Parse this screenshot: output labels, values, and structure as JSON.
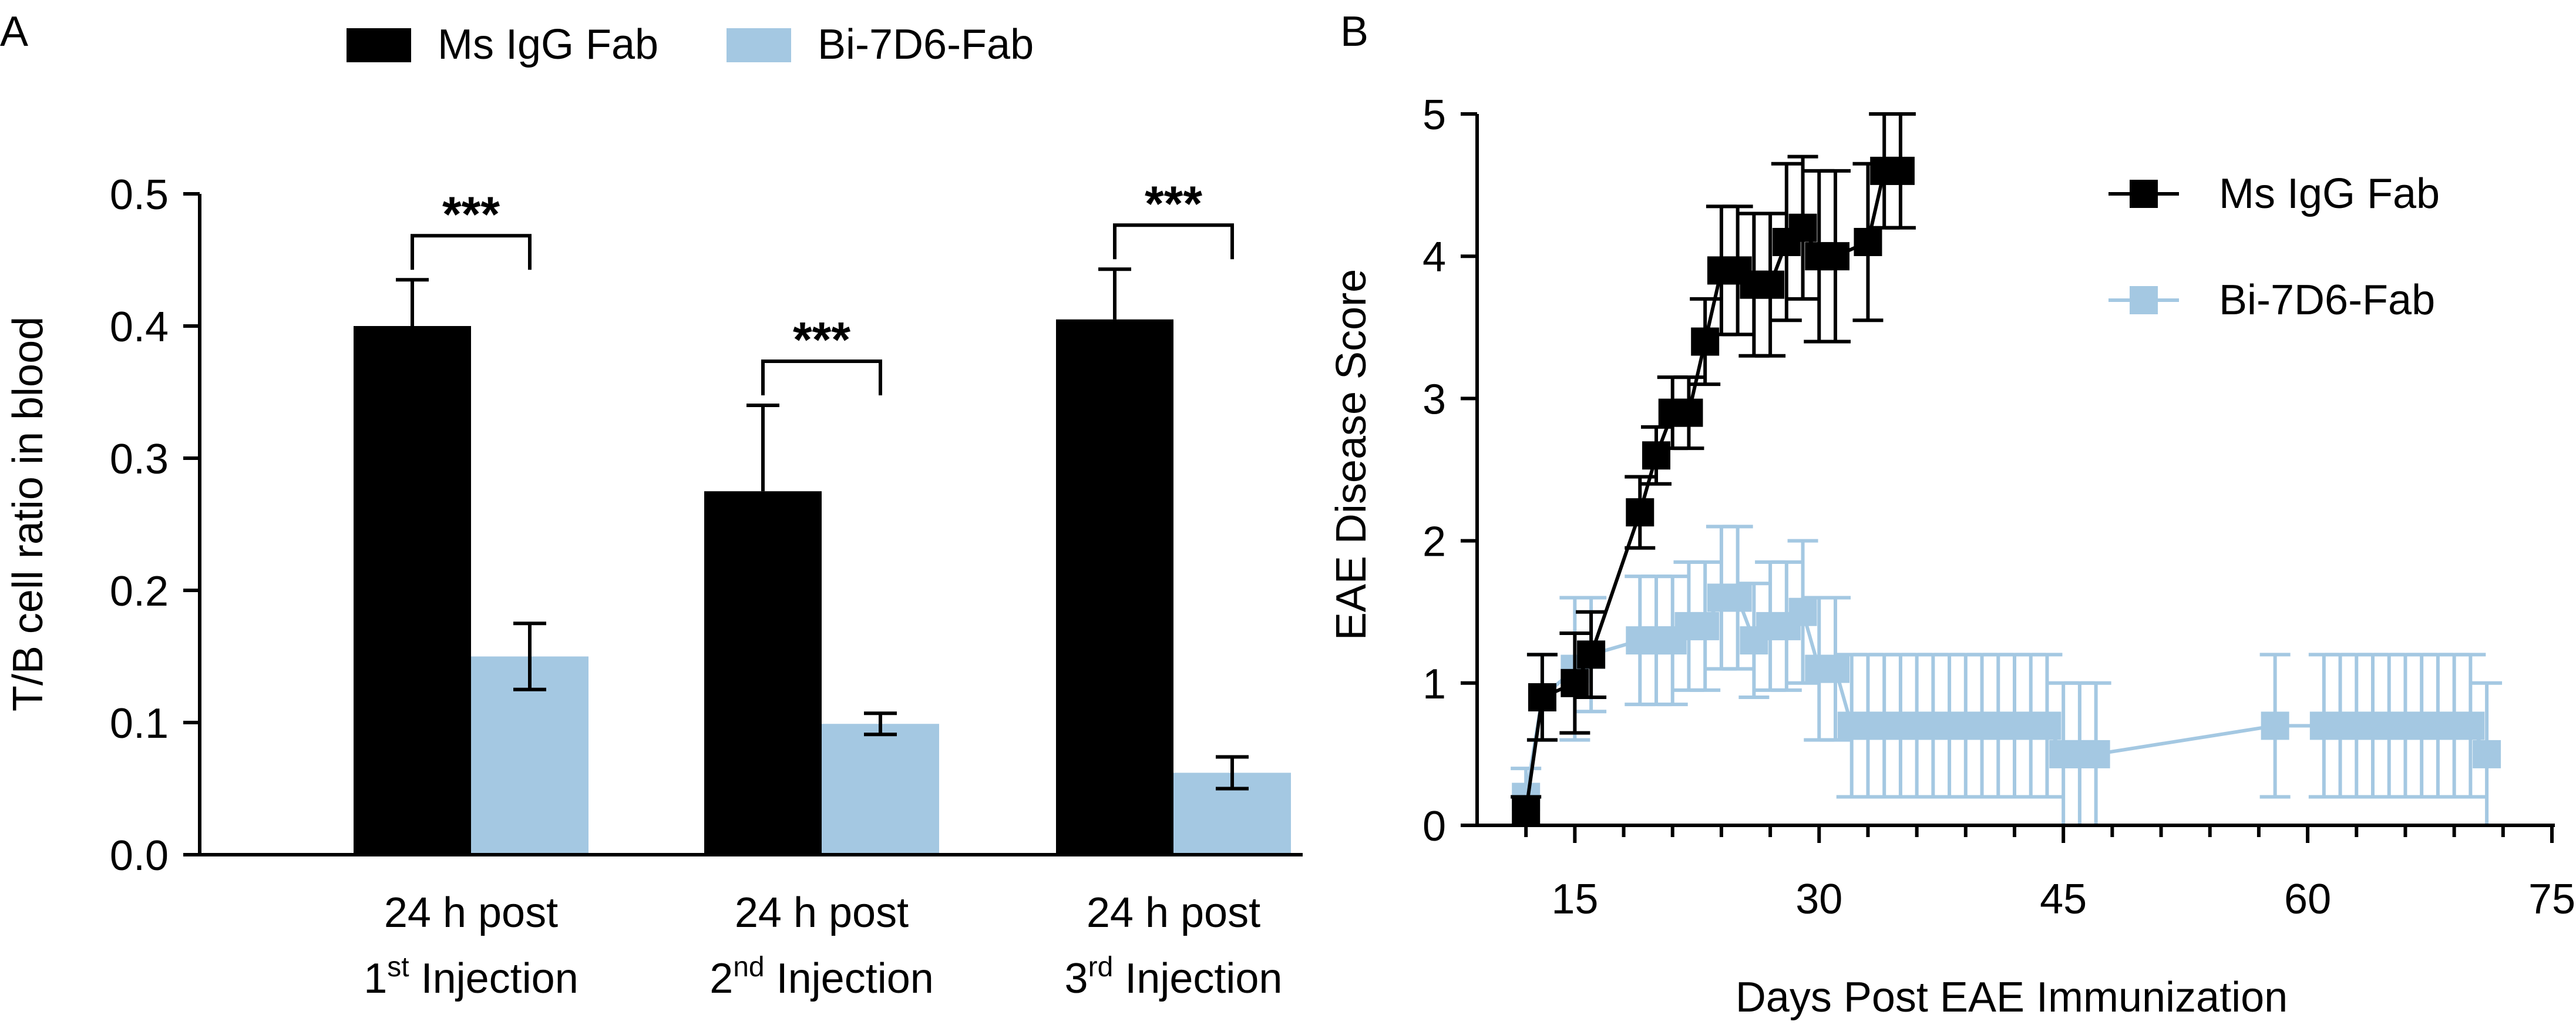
{
  "colors": {
    "ms": "#000000",
    "bi": "#a4c8e2"
  },
  "chart_data": [
    {
      "panel": "A",
      "type": "bar",
      "title": "",
      "ylabel": "T/B cell ratio in blood",
      "ylim": [
        0,
        0.5
      ],
      "yticks": [
        "0.0",
        "0.1",
        "0.2",
        "0.3",
        "0.4",
        "0.5"
      ],
      "legend_position": "top",
      "categories": [
        {
          "line1": "24 h post",
          "num": "1",
          "sup": "st",
          "rest": " Injection"
        },
        {
          "line1": "24 h post",
          "num": "2",
          "sup": "nd",
          "rest": " Injection"
        },
        {
          "line1": "24 h post",
          "num": "3",
          "sup": "rd",
          "rest": " Injection"
        }
      ],
      "series": [
        {
          "name": "Ms IgG Fab",
          "values": [
            0.4,
            0.275,
            0.405
          ],
          "errors": [
            0.035,
            0.065,
            0.038
          ]
        },
        {
          "name": "Bi-7D6-Fab",
          "values": [
            0.15,
            0.099,
            0.062
          ],
          "errors": [
            0.025,
            0.008,
            0.012
          ]
        }
      ],
      "significance": [
        "***",
        "***",
        "***"
      ]
    },
    {
      "panel": "B",
      "type": "line",
      "title": "",
      "xlabel": "Days Post EAE Immunization",
      "ylabel": "EAE Disease Score",
      "xlim": [
        9,
        75
      ],
      "ylim": [
        0,
        5
      ],
      "xticks": [
        "15",
        "30",
        "45",
        "60",
        "75"
      ],
      "yticks": [
        "0",
        "1",
        "2",
        "3",
        "4",
        "5"
      ],
      "legend_position": "top-right",
      "series": [
        {
          "name": "Ms IgG Fab",
          "marker": "square",
          "x": [
            12,
            13,
            15,
            16,
            19,
            20,
            21,
            22,
            23,
            24,
            25,
            26,
            27,
            28,
            29,
            30,
            31,
            33,
            34,
            35
          ],
          "y": [
            0.1,
            0.9,
            1.0,
            1.2,
            2.2,
            2.6,
            2.9,
            2.9,
            3.4,
            3.9,
            3.9,
            3.8,
            3.8,
            4.1,
            4.2,
            4.0,
            4.0,
            4.1,
            4.6,
            4.6
          ],
          "err": [
            0.1,
            0.3,
            0.35,
            0.3,
            0.25,
            0.2,
            0.25,
            0.25,
            0.3,
            0.45,
            0.45,
            0.5,
            0.5,
            0.55,
            0.5,
            0.6,
            0.6,
            0.55,
            0.4,
            0.4
          ]
        },
        {
          "name": "Bi-7D6-Fab",
          "marker": "square",
          "x": [
            12,
            13,
            15,
            16,
            19,
            20,
            21,
            22,
            23,
            24,
            25,
            26,
            27,
            28,
            29,
            30,
            31,
            32,
            33,
            34,
            35,
            36,
            37,
            38,
            39,
            40,
            41,
            42,
            43,
            44,
            45,
            46,
            47,
            58,
            61,
            62,
            63,
            64,
            65,
            66,
            67,
            68,
            69,
            70,
            71
          ],
          "y": [
            0.2,
            0.9,
            1.1,
            1.2,
            1.3,
            1.3,
            1.3,
            1.4,
            1.4,
            1.6,
            1.6,
            1.3,
            1.4,
            1.4,
            1.5,
            1.1,
            1.1,
            0.7,
            0.7,
            0.7,
            0.7,
            0.7,
            0.7,
            0.7,
            0.7,
            0.7,
            0.7,
            0.7,
            0.7,
            0.7,
            0.5,
            0.5,
            0.5,
            0.7,
            0.7,
            0.7,
            0.7,
            0.7,
            0.7,
            0.7,
            0.7,
            0.7,
            0.7,
            0.7,
            0.5
          ],
          "err": [
            0.2,
            0.3,
            0.5,
            0.4,
            0.45,
            0.45,
            0.45,
            0.45,
            0.45,
            0.5,
            0.5,
            0.4,
            0.45,
            0.45,
            0.5,
            0.5,
            0.5,
            0.5,
            0.5,
            0.5,
            0.5,
            0.5,
            0.5,
            0.5,
            0.5,
            0.5,
            0.5,
            0.5,
            0.5,
            0.5,
            0.5,
            0.5,
            0.5,
            0.5,
            0.5,
            0.5,
            0.5,
            0.5,
            0.5,
            0.5,
            0.5,
            0.5,
            0.5,
            0.5,
            0.5
          ]
        }
      ]
    }
  ]
}
